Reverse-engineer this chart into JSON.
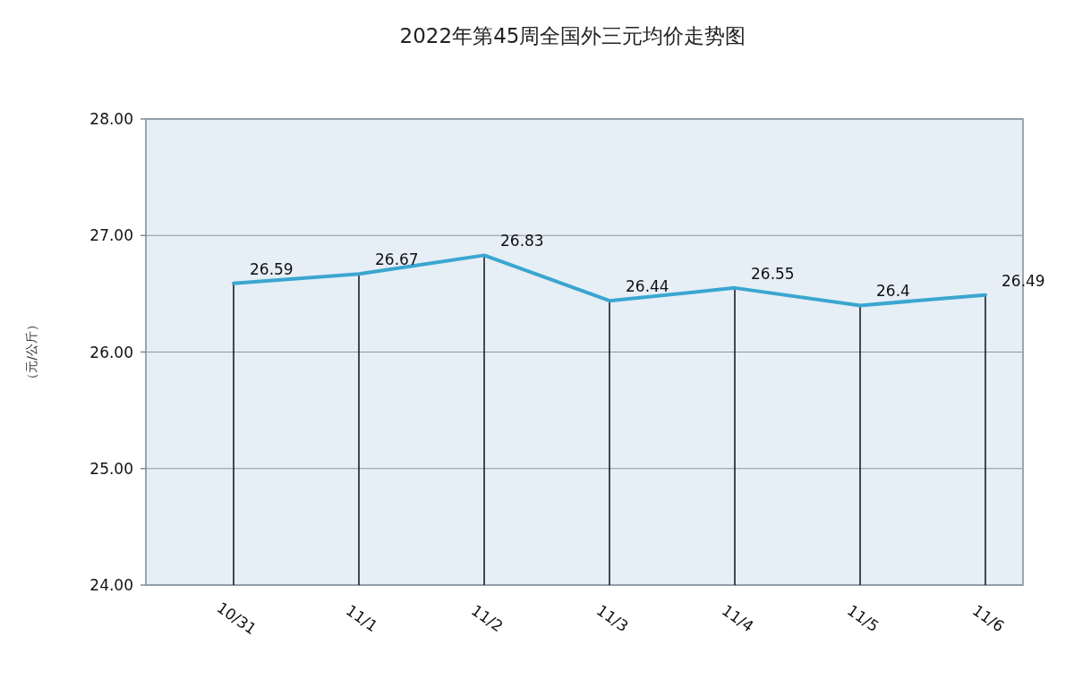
{
  "chart_data": {
    "type": "line",
    "title": "2022年第45周全国外三元均价走势图",
    "ylabel": "（元/公斤）",
    "categories": [
      "10/31",
      "11/1",
      "11/2",
      "11/3",
      "11/4",
      "11/5",
      "11/6"
    ],
    "series": [
      {
        "color": "#3aa6d0",
        "values": [
          26.59,
          26.67,
          26.83,
          26.44,
          26.55,
          26.4,
          26.49
        ]
      }
    ],
    "ylim": [
      24,
      28
    ],
    "yticks": [
      {
        "value": 24,
        "label": "24.00"
      },
      {
        "value": 25,
        "label": "25.00"
      },
      {
        "value": 26,
        "label": "26.00"
      },
      {
        "value": 27,
        "label": "27.00"
      },
      {
        "value": 28,
        "label": "28.00"
      }
    ],
    "grid": "y",
    "data_labels": true,
    "marker": "none",
    "line_style": "solid"
  }
}
